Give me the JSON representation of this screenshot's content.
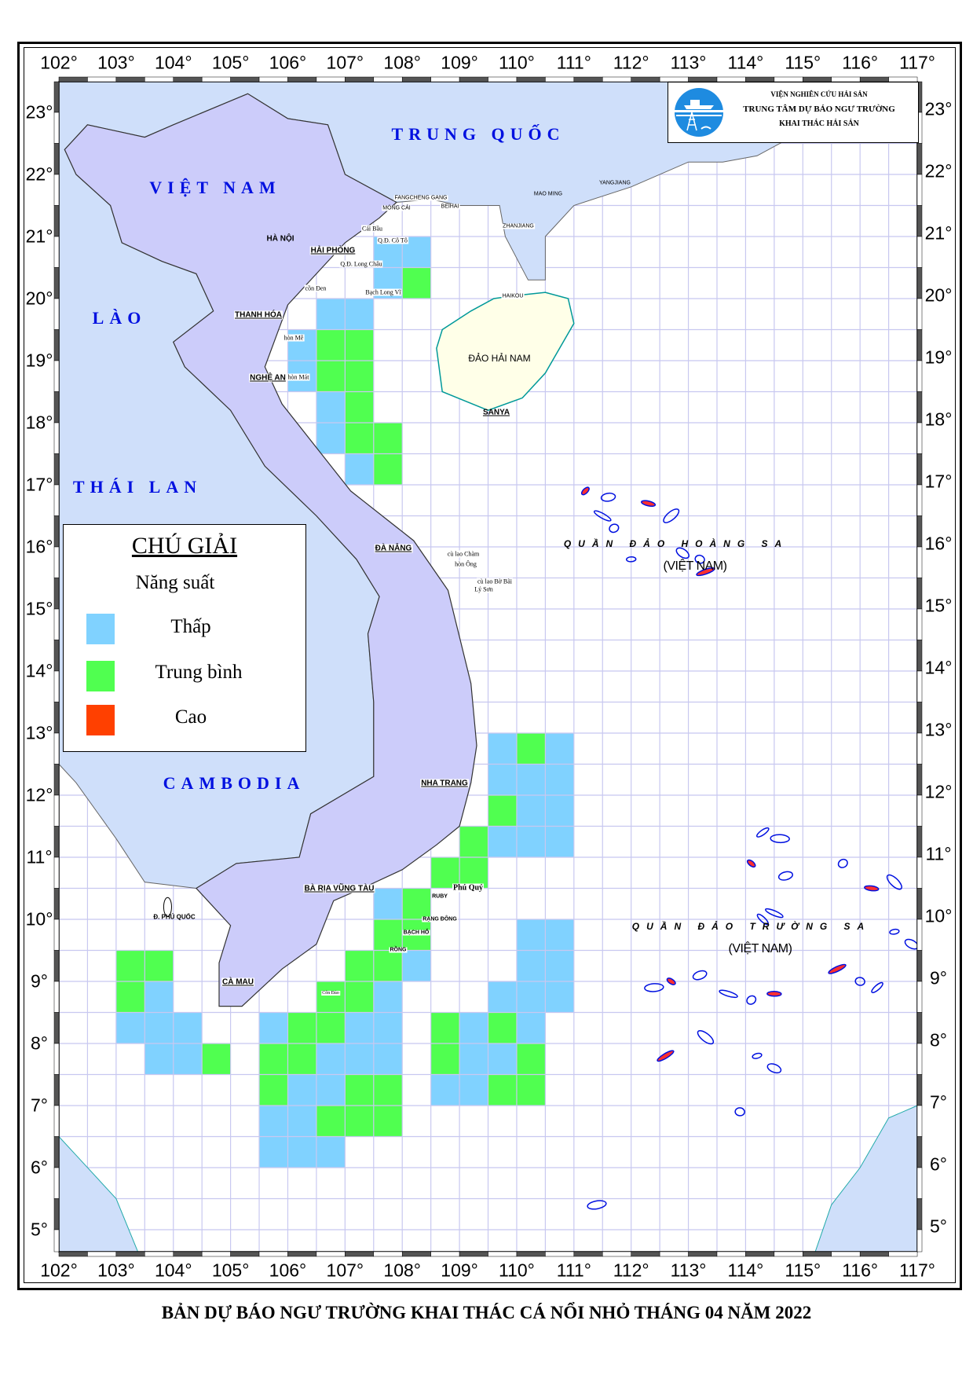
{
  "title": "BẢN DỰ BÁO NGƯ TRƯỜNG KHAI THÁC CÁ NỔI NHỎ THÁNG 04 NĂM 2022",
  "logo": {
    "icon": "fisheries-institute-logo-icon",
    "line1": "VIỆN NGHIÊN CỨU HẢI SẢN",
    "line2": "TRUNG TÂM DỰ BÁO NGƯ TRƯỜNG",
    "line3": "KHAI THÁC HẢI SẢN"
  },
  "axes": {
    "lon_labels": [
      "102°",
      "103°",
      "104°",
      "105°",
      "106°",
      "107°",
      "108°",
      "109°",
      "110°",
      "111°",
      "112°",
      "113°",
      "114°",
      "115°",
      "116°",
      "117°"
    ],
    "lat_labels": [
      "23°",
      "22°",
      "21°",
      "20°",
      "19°",
      "18°",
      "17°",
      "16°",
      "15°",
      "14°",
      "13°",
      "12°",
      "11°",
      "10°",
      "9°",
      "8°",
      "7°",
      "6°",
      "5°"
    ],
    "lon_range": [
      102,
      117
    ],
    "lat_range": [
      4.65,
      23.5
    ],
    "grid_step_deg": 0.5
  },
  "legend": {
    "title": "CHÚ GIẢI",
    "subtitle": "Năng suất",
    "items": [
      {
        "code": "L",
        "label": "Thấp",
        "color": "#80D2FF"
      },
      {
        "code": "M",
        "label": "Trung bình",
        "color": "#50FF50"
      },
      {
        "code": "H",
        "label": "Cao",
        "color": "#FF4000"
      }
    ]
  },
  "colors": {
    "vietnam_land": "#CCCCFA",
    "foreign_land": "#CFDFFA",
    "hainan": "#FFFFE8",
    "sea": "#FFFFFF",
    "grid": "#C8C8F0",
    "country_label": "#0010E0"
  },
  "labels": {
    "china": "TRUNG QUỐC",
    "vietnam": "VIỆT NAM",
    "laos": "LÀO",
    "thailand": "THÁI LAN",
    "cambodia": "CAMBODIA",
    "ha_noi": "HÀ NỘI",
    "hai_phong": "HẢI PHÒNG",
    "thanh_hoa": "THANH HÓA",
    "nghe_an": "NGHỆ AN",
    "da_nang": "ĐÀ NẴNG",
    "nha_trang": "NHA TRANG",
    "ba_ria_vung_tau": "BÀ RỊA VŨNG TÀU",
    "ca_mau": "CÀ MAU",
    "phu_quoc": "Đ. PHÚ QUỐC",
    "hainan_island": "ĐẢO HẢI NAM",
    "sanya": "SANYA",
    "fangcheng": "FANGCHENG GANG",
    "mong_cai": "MÓNG CÁI",
    "beihai": "BEIHAI",
    "zhanjiang": "ZHANJIANG",
    "maoming": "MAO MING",
    "yangjiang": "YANGJIANG",
    "haikou": "HAIKOU",
    "cai_bau": "Cái Bầu",
    "co_to": "Q.Đ. Cô Tô",
    "long_chau": "Q.Đ. Long Châu",
    "con_den": "cồn Đen",
    "bach_long_vi": "Bạch Long Vĩ",
    "hon_me": "hòn Mê",
    "hon_mat": "hòn Mát",
    "cu_lao_cham": "cù lao Chàm",
    "hon_ong": "hòn Ông",
    "bo_bai": "cù lao Bờ Bãi",
    "ly_son": "Lý Sơn",
    "phu_quy": "Phú Quý",
    "ruby": "RUBY",
    "rang_dong": "RẠNG ĐÔNG",
    "bach_ho": "BẠCH HỔ",
    "rong": "RỒNG",
    "con_dao": "Côn Đảo",
    "hoang_sa": "QUẦN ĐẢO HOÀNG SA",
    "hoang_sa_vn": "(VIỆT NAM)",
    "truong_sa": "QUẦN ĐẢO TRƯỜNG SA",
    "truong_sa_vn": "(VIỆT NAM)"
  },
  "forecast_cells": [
    [
      107.5,
      21,
      "L"
    ],
    [
      108,
      21,
      "L"
    ],
    [
      107.5,
      20.5,
      "L"
    ],
    [
      108,
      20.5,
      "M"
    ],
    [
      106.5,
      20,
      "L"
    ],
    [
      107,
      20,
      "L"
    ],
    [
      106,
      19.5,
      "L"
    ],
    [
      106.5,
      19.5,
      "M"
    ],
    [
      107,
      19.5,
      "M"
    ],
    [
      106,
      19,
      "L"
    ],
    [
      106.5,
      19,
      "M"
    ],
    [
      107,
      19,
      "M"
    ],
    [
      106.5,
      18.5,
      "L"
    ],
    [
      107,
      18.5,
      "M"
    ],
    [
      106.5,
      18,
      "L"
    ],
    [
      107,
      18,
      "M"
    ],
    [
      107.5,
      18,
      "M"
    ],
    [
      107,
      17.5,
      "L"
    ],
    [
      107.5,
      17.5,
      "M"
    ],
    [
      109.5,
      13,
      "L"
    ],
    [
      110,
      13,
      "M"
    ],
    [
      110.5,
      13,
      "L"
    ],
    [
      109.5,
      12.5,
      "L"
    ],
    [
      110,
      12.5,
      "L"
    ],
    [
      110.5,
      12.5,
      "L"
    ],
    [
      109.5,
      12,
      "M"
    ],
    [
      110,
      12,
      "L"
    ],
    [
      110.5,
      12,
      "L"
    ],
    [
      109,
      11.5,
      "M"
    ],
    [
      109.5,
      11.5,
      "L"
    ],
    [
      110,
      11.5,
      "L"
    ],
    [
      110.5,
      11.5,
      "L"
    ],
    [
      108.5,
      11,
      "M"
    ],
    [
      109,
      11,
      "M"
    ],
    [
      107.5,
      10.5,
      "L"
    ],
    [
      108,
      10.5,
      "M"
    ],
    [
      107.5,
      10,
      "M"
    ],
    [
      108,
      10,
      "M"
    ],
    [
      110,
      10,
      "L"
    ],
    [
      110.5,
      10,
      "L"
    ],
    [
      107,
      9.5,
      "M"
    ],
    [
      107.5,
      9.5,
      "M"
    ],
    [
      108,
      9.5,
      "L"
    ],
    [
      110,
      9.5,
      "L"
    ],
    [
      110.5,
      9.5,
      "L"
    ],
    [
      106.5,
      9,
      "M"
    ],
    [
      107,
      9,
      "M"
    ],
    [
      107.5,
      9,
      "L"
    ],
    [
      109.5,
      9,
      "L"
    ],
    [
      110,
      9,
      "L"
    ],
    [
      110.5,
      9,
      "L"
    ],
    [
      105.5,
      8.5,
      "L"
    ],
    [
      106,
      8.5,
      "M"
    ],
    [
      106.5,
      8.5,
      "M"
    ],
    [
      107,
      8.5,
      "L"
    ],
    [
      107.5,
      8.5,
      "L"
    ],
    [
      108.5,
      8.5,
      "M"
    ],
    [
      109,
      8.5,
      "L"
    ],
    [
      109.5,
      8.5,
      "M"
    ],
    [
      110,
      8.5,
      "L"
    ],
    [
      105.5,
      8,
      "M"
    ],
    [
      106,
      8,
      "M"
    ],
    [
      106.5,
      8,
      "L"
    ],
    [
      107,
      8,
      "L"
    ],
    [
      107.5,
      8,
      "L"
    ],
    [
      108.5,
      8,
      "M"
    ],
    [
      109,
      8,
      "L"
    ],
    [
      109.5,
      8,
      "L"
    ],
    [
      110,
      8,
      "M"
    ],
    [
      105.5,
      7.5,
      "M"
    ],
    [
      106,
      7.5,
      "L"
    ],
    [
      106.5,
      7.5,
      "L"
    ],
    [
      107,
      7.5,
      "M"
    ],
    [
      107.5,
      7.5,
      "M"
    ],
    [
      108.5,
      7.5,
      "L"
    ],
    [
      109,
      7.5,
      "L"
    ],
    [
      109.5,
      7.5,
      "M"
    ],
    [
      110,
      7.5,
      "M"
    ],
    [
      105.5,
      7,
      "L"
    ],
    [
      106,
      7,
      "L"
    ],
    [
      106.5,
      7,
      "M"
    ],
    [
      107,
      7,
      "M"
    ],
    [
      107.5,
      7,
      "M"
    ],
    [
      105.5,
      6.5,
      "L"
    ],
    [
      106,
      6.5,
      "L"
    ],
    [
      106.5,
      6.5,
      "L"
    ],
    [
      103,
      9.5,
      "M"
    ],
    [
      103.5,
      9.5,
      "M"
    ],
    [
      103,
      9,
      "M"
    ],
    [
      103.5,
      9,
      "L"
    ],
    [
      103,
      8.5,
      "L"
    ],
    [
      103.5,
      8.5,
      "L"
    ],
    [
      104,
      8.5,
      "L"
    ],
    [
      103.5,
      8,
      "L"
    ],
    [
      104,
      8,
      "L"
    ],
    [
      104.5,
      8,
      "M"
    ]
  ]
}
